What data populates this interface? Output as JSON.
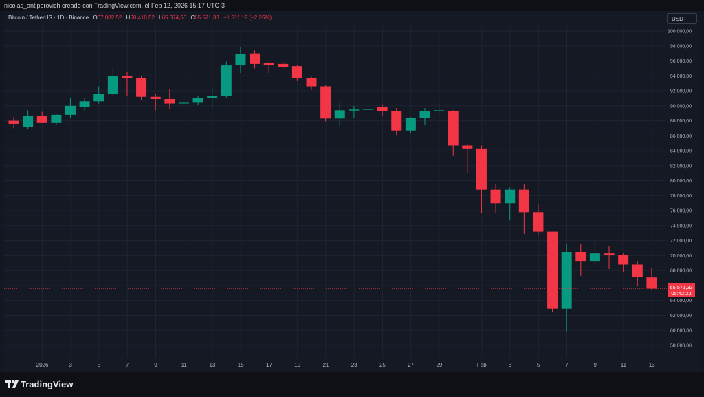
{
  "header": {
    "caption": "nicolas_antiporovich creado con TradingView.com, el Feb 12, 2026 15:17 UTC-3"
  },
  "legend": {
    "symbol": "Bitcoin / TetherUS · 1D · Binance",
    "open_label": "O",
    "open": "67.082,52",
    "high_label": "H",
    "high": "68.410,52",
    "low_label": "L",
    "low": "65.374,56",
    "close_label": "C",
    "close": "65.571,33",
    "change": "−1.511,19 (−2,25%)"
  },
  "toolbar": {
    "currency": "USDT"
  },
  "brand": {
    "name": "TradingView"
  },
  "colors": {
    "up": "#089981",
    "down": "#f23645",
    "grid": "#1f2433",
    "background": "#151924"
  },
  "chart_data": {
    "type": "candlestick",
    "timeframe": "1D",
    "y_axis": {
      "min": 58000,
      "max": 100000,
      "step": 2000,
      "tick_labels": [
        "58.000,00",
        "60.000,00",
        "62.000,00",
        "64.000,00",
        "66.000,00",
        "68.000,00",
        "70.000,00",
        "72.000,00",
        "74.000,00",
        "76.000,00",
        "78.000,00",
        "80.000,00",
        "82.000,00",
        "84.000,00",
        "86.000,00",
        "88.000,00",
        "90.000,00",
        "92.000,00",
        "94.000,00",
        "96.000,00",
        "98.000,00",
        "100.000,00"
      ]
    },
    "x_axis": {
      "tick_labels": [
        {
          "label": "2026",
          "index": 2
        },
        {
          "label": "3",
          "index": 4
        },
        {
          "label": "5",
          "index": 6
        },
        {
          "label": "7",
          "index": 8
        },
        {
          "label": "9",
          "index": 10
        },
        {
          "label": "11",
          "index": 12
        },
        {
          "label": "13",
          "index": 14
        },
        {
          "label": "15",
          "index": 16
        },
        {
          "label": "17",
          "index": 18
        },
        {
          "label": "19",
          "index": 20
        },
        {
          "label": "21",
          "index": 22
        },
        {
          "label": "23",
          "index": 24
        },
        {
          "label": "25",
          "index": 26
        },
        {
          "label": "27",
          "index": 28
        },
        {
          "label": "29",
          "index": 30
        },
        {
          "label": "Feb",
          "index": 33
        },
        {
          "label": "3",
          "index": 35
        },
        {
          "label": "5",
          "index": 37
        },
        {
          "label": "7",
          "index": 39
        },
        {
          "label": "9",
          "index": 41
        },
        {
          "label": "11",
          "index": 43
        },
        {
          "label": "13",
          "index": 45
        }
      ]
    },
    "candles": [
      {
        "o": 88000,
        "h": 88500,
        "l": 87000,
        "c": 87600
      },
      {
        "o": 87200,
        "h": 89400,
        "l": 86900,
        "c": 88600
      },
      {
        "o": 88600,
        "h": 89200,
        "l": 87800,
        "c": 87700
      },
      {
        "o": 87700,
        "h": 88900,
        "l": 87500,
        "c": 88800
      },
      {
        "o": 88800,
        "h": 91000,
        "l": 88400,
        "c": 90000
      },
      {
        "o": 89800,
        "h": 91000,
        "l": 89400,
        "c": 90600
      },
      {
        "o": 90600,
        "h": 92600,
        "l": 90300,
        "c": 91600
      },
      {
        "o": 91600,
        "h": 94900,
        "l": 91200,
        "c": 94000
      },
      {
        "o": 94000,
        "h": 94500,
        "l": 91300,
        "c": 93700
      },
      {
        "o": 93700,
        "h": 94000,
        "l": 90800,
        "c": 91200
      },
      {
        "o": 91200,
        "h": 91600,
        "l": 89400,
        "c": 90900
      },
      {
        "o": 90900,
        "h": 92200,
        "l": 89600,
        "c": 90300
      },
      {
        "o": 90300,
        "h": 91000,
        "l": 90000,
        "c": 90500
      },
      {
        "o": 90500,
        "h": 91300,
        "l": 90100,
        "c": 91000
      },
      {
        "o": 91000,
        "h": 92500,
        "l": 89700,
        "c": 91300
      },
      {
        "o": 91300,
        "h": 95900,
        "l": 91100,
        "c": 95400
      },
      {
        "o": 95400,
        "h": 97800,
        "l": 94400,
        "c": 96900
      },
      {
        "o": 97000,
        "h": 97400,
        "l": 95000,
        "c": 95600
      },
      {
        "o": 95700,
        "h": 95900,
        "l": 94400,
        "c": 95400
      },
      {
        "o": 95600,
        "h": 95900,
        "l": 94900,
        "c": 95200
      },
      {
        "o": 95300,
        "h": 95500,
        "l": 93400,
        "c": 93700
      },
      {
        "o": 93700,
        "h": 93900,
        "l": 92100,
        "c": 92600
      },
      {
        "o": 92600,
        "h": 92800,
        "l": 87900,
        "c": 88300
      },
      {
        "o": 88300,
        "h": 90600,
        "l": 87300,
        "c": 89400
      },
      {
        "o": 89400,
        "h": 90000,
        "l": 88400,
        "c": 89500
      },
      {
        "o": 89500,
        "h": 91300,
        "l": 88700,
        "c": 89600
      },
      {
        "o": 89800,
        "h": 90200,
        "l": 88600,
        "c": 89300
      },
      {
        "o": 89300,
        "h": 89700,
        "l": 86100,
        "c": 86700
      },
      {
        "o": 86700,
        "h": 88500,
        "l": 86300,
        "c": 88400
      },
      {
        "o": 88400,
        "h": 89700,
        "l": 87400,
        "c": 89300
      },
      {
        "o": 89300,
        "h": 90500,
        "l": 88600,
        "c": 89400
      },
      {
        "o": 89300,
        "h": 89400,
        "l": 83300,
        "c": 84700
      },
      {
        "o": 84700,
        "h": 84900,
        "l": 81000,
        "c": 84300
      },
      {
        "o": 84300,
        "h": 84700,
        "l": 75700,
        "c": 78800
      },
      {
        "o": 78800,
        "h": 79600,
        "l": 75700,
        "c": 77000
      },
      {
        "o": 77000,
        "h": 79100,
        "l": 74700,
        "c": 78800
      },
      {
        "o": 78800,
        "h": 79500,
        "l": 72900,
        "c": 75800
      },
      {
        "o": 75800,
        "h": 76900,
        "l": 72700,
        "c": 73200
      },
      {
        "o": 73200,
        "h": 73200,
        "l": 62400,
        "c": 62900
      },
      {
        "o": 62900,
        "h": 71600,
        "l": 59900,
        "c": 70500
      },
      {
        "o": 70500,
        "h": 71600,
        "l": 67300,
        "c": 69200
      },
      {
        "o": 69200,
        "h": 72200,
        "l": 68800,
        "c": 70300
      },
      {
        "o": 70300,
        "h": 71300,
        "l": 68200,
        "c": 70100
      },
      {
        "o": 70100,
        "h": 70400,
        "l": 67800,
        "c": 68800
      },
      {
        "o": 68800,
        "h": 69300,
        "l": 65900,
        "c": 67100
      },
      {
        "o": 67082.52,
        "h": 68410.52,
        "l": 65374.56,
        "c": 65571.33
      }
    ],
    "current_price": {
      "value": 65571.33,
      "label": "65.571,33",
      "countdown": "05:42:23"
    }
  }
}
